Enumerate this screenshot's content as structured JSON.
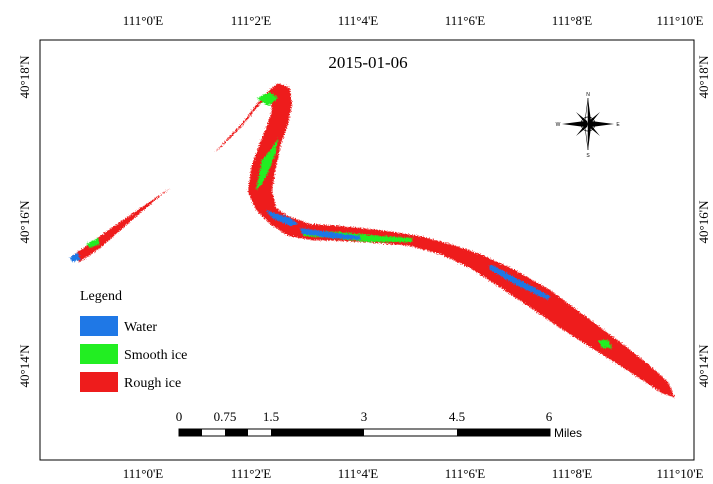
{
  "map": {
    "date_label": "2015-01-06",
    "lon_ticks": [
      "111°0'E",
      "111°2'E",
      "111°4'E",
      "111°6'E",
      "111°8'E",
      "111°10'E"
    ],
    "lat_ticks": [
      "40°18'N",
      "40°16'N",
      "40°14'N"
    ],
    "north_arrow": {
      "icon": "compass-rose-icon",
      "labels": {
        "n": "N",
        "s": "S",
        "e": "E",
        "w": "W"
      }
    },
    "legend": {
      "title": "Legend",
      "items": [
        {
          "label": "Water",
          "color": "#1f78e6"
        },
        {
          "label": "Smooth ice",
          "color": "#22ee22"
        },
        {
          "label": "Rough ice",
          "color": "#ee1c1c"
        }
      ]
    },
    "scale_bar": {
      "labels": [
        "0",
        "0.75",
        "1.5",
        "3",
        "4.5",
        "6"
      ],
      "unit": "Miles"
    },
    "colors": {
      "water": "#1f78e6",
      "smooth_ice": "#22ee22",
      "rough_ice": "#ee1c1c",
      "frame": "#000000"
    }
  }
}
